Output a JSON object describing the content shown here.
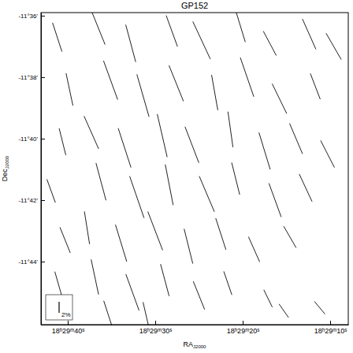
{
  "chart_data": {
    "type": "vector_field",
    "title": "GP152",
    "x_label": "RA",
    "x_label_sub": "J2000",
    "y_label": "Dec",
    "y_label_sub": "J2000",
    "xlim": [
      66583.06,
      66547.93
    ],
    "xticks": [
      {
        "value": 66580,
        "label": "18ʰ29ᵐ40ˢ"
      },
      {
        "value": 66570,
        "label": "18ʰ29ᵐ30ˢ"
      },
      {
        "value": 66560,
        "label": "18ʰ29ᵐ20ˢ"
      },
      {
        "value": 66550,
        "label": "18ʰ29ᵐ10ˢ"
      }
    ],
    "ylim": [
      -706.05,
      -695.9
    ],
    "yticks": [
      {
        "value": -696,
        "label": "-11°36'"
      },
      {
        "value": -698,
        "label": "-11°38'"
      },
      {
        "value": -700,
        "label": "-11°40'"
      },
      {
        "value": -702,
        "label": "-11°42'"
      },
      {
        "value": -704,
        "label": "-11°44'"
      }
    ],
    "color": "#222222",
    "scale_bar": {
      "value": 2,
      "label": "2%"
    },
    "vectors": [
      {
        "ra": 66581.2,
        "dec": -696.7,
        "p": 5.5,
        "pa": 18
      },
      {
        "ra": 66576.5,
        "dec": -696.4,
        "p": 6.5,
        "pa": 22
      },
      {
        "ra": 66572.8,
        "dec": -696.9,
        "p": 7.0,
        "pa": 15
      },
      {
        "ra": 66568.1,
        "dec": -696.5,
        "p": 6.0,
        "pa": 20
      },
      {
        "ra": 66564.7,
        "dec": -696.8,
        "p": 7.5,
        "pa": 25
      },
      {
        "ra": 66560.3,
        "dec": -696.3,
        "p": 6.5,
        "pa": 17
      },
      {
        "ra": 66556.9,
        "dec": -696.9,
        "p": 5.0,
        "pa": 28
      },
      {
        "ra": 66552.4,
        "dec": -696.6,
        "p": 6.0,
        "pa": 24
      },
      {
        "ra": 66549.6,
        "dec": -697.0,
        "p": 5.5,
        "pa": 30
      },
      {
        "ra": 66579.8,
        "dec": -698.4,
        "p": 6.0,
        "pa": 12
      },
      {
        "ra": 66575.1,
        "dec": -698.1,
        "p": 7.5,
        "pa": 20
      },
      {
        "ra": 66571.4,
        "dec": -698.6,
        "p": 8.0,
        "pa": 16
      },
      {
        "ra": 66567.6,
        "dec": -698.2,
        "p": 7.0,
        "pa": 22
      },
      {
        "ra": 66563.2,
        "dec": -698.5,
        "p": 6.5,
        "pa": 10
      },
      {
        "ra": 66559.5,
        "dec": -698.0,
        "p": 7.5,
        "pa": 19
      },
      {
        "ra": 66555.8,
        "dec": -698.7,
        "p": 6.0,
        "pa": 26
      },
      {
        "ra": 66551.7,
        "dec": -698.3,
        "p": 5.0,
        "pa": 21
      },
      {
        "ra": 66580.6,
        "dec": -700.1,
        "p": 5.0,
        "pa": 14
      },
      {
        "ra": 66577.3,
        "dec": -699.8,
        "p": 6.5,
        "pa": 24
      },
      {
        "ra": 66573.5,
        "dec": -700.3,
        "p": 7.5,
        "pa": 18
      },
      {
        "ra": 66569.2,
        "dec": -699.9,
        "p": 8.0,
        "pa": 13
      },
      {
        "ra": 66565.8,
        "dec": -700.2,
        "p": 7.0,
        "pa": 21
      },
      {
        "ra": 66561.4,
        "dec": -699.7,
        "p": 6.5,
        "pa": 8
      },
      {
        "ra": 66557.5,
        "dec": -700.4,
        "p": 7.0,
        "pa": 17
      },
      {
        "ra": 66553.9,
        "dec": -700.0,
        "p": 6.0,
        "pa": 23
      },
      {
        "ra": 66550.3,
        "dec": -700.5,
        "p": 5.5,
        "pa": 27
      },
      {
        "ra": 66581.9,
        "dec": -701.7,
        "p": 4.5,
        "pa": 20
      },
      {
        "ra": 66576.2,
        "dec": -701.4,
        "p": 7.0,
        "pa": 15
      },
      {
        "ra": 66572.1,
        "dec": -701.9,
        "p": 8.0,
        "pa": 19
      },
      {
        "ra": 66568.4,
        "dec": -701.5,
        "p": 7.5,
        "pa": 11
      },
      {
        "ra": 66564.1,
        "dec": -701.8,
        "p": 7.0,
        "pa": 23
      },
      {
        "ra": 66560.8,
        "dec": -701.3,
        "p": 6.0,
        "pa": 14
      },
      {
        "ra": 66556.3,
        "dec": -702.0,
        "p": 6.5,
        "pa": 20
      },
      {
        "ra": 66552.8,
        "dec": -701.6,
        "p": 5.5,
        "pa": 25
      },
      {
        "ra": 66580.3,
        "dec": -703.3,
        "p": 5.0,
        "pa": 22
      },
      {
        "ra": 66577.8,
        "dec": -702.9,
        "p": 6.0,
        "pa": 9
      },
      {
        "ra": 66573.9,
        "dec": -703.4,
        "p": 7.0,
        "pa": 17
      },
      {
        "ra": 66570.0,
        "dec": -703.0,
        "p": 7.5,
        "pa": 21
      },
      {
        "ra": 66566.2,
        "dec": -703.5,
        "p": 6.5,
        "pa": 14
      },
      {
        "ra": 66562.5,
        "dec": -703.1,
        "p": 6.0,
        "pa": 18
      },
      {
        "ra": 66558.7,
        "dec": -703.6,
        "p": 5.0,
        "pa": 24
      },
      {
        "ra": 66554.6,
        "dec": -703.2,
        "p": 4.5,
        "pa": 30
      },
      {
        "ra": 66581.0,
        "dec": -704.8,
        "p": 5.5,
        "pa": 16
      },
      {
        "ra": 66576.9,
        "dec": -704.5,
        "p": 6.5,
        "pa": 12
      },
      {
        "ra": 66572.6,
        "dec": -705.0,
        "p": 7.0,
        "pa": 20
      },
      {
        "ra": 66568.9,
        "dec": -704.6,
        "p": 6.0,
        "pa": 15
      },
      {
        "ra": 66565.0,
        "dec": -705.1,
        "p": 5.5,
        "pa": 22
      },
      {
        "ra": 66561.7,
        "dec": -704.7,
        "p": 4.5,
        "pa": 19
      },
      {
        "ra": 66557.1,
        "dec": -705.2,
        "p": 3.5,
        "pa": 26
      },
      {
        "ra": 66575.4,
        "dec": -705.7,
        "p": 5.0,
        "pa": 18
      },
      {
        "ra": 66571.0,
        "dec": -705.8,
        "p": 5.5,
        "pa": 13
      },
      {
        "ra": 66555.3,
        "dec": -705.6,
        "p": 3.0,
        "pa": 35
      },
      {
        "ra": 66551.2,
        "dec": -705.5,
        "p": 3.0,
        "pa": 40
      }
    ]
  }
}
